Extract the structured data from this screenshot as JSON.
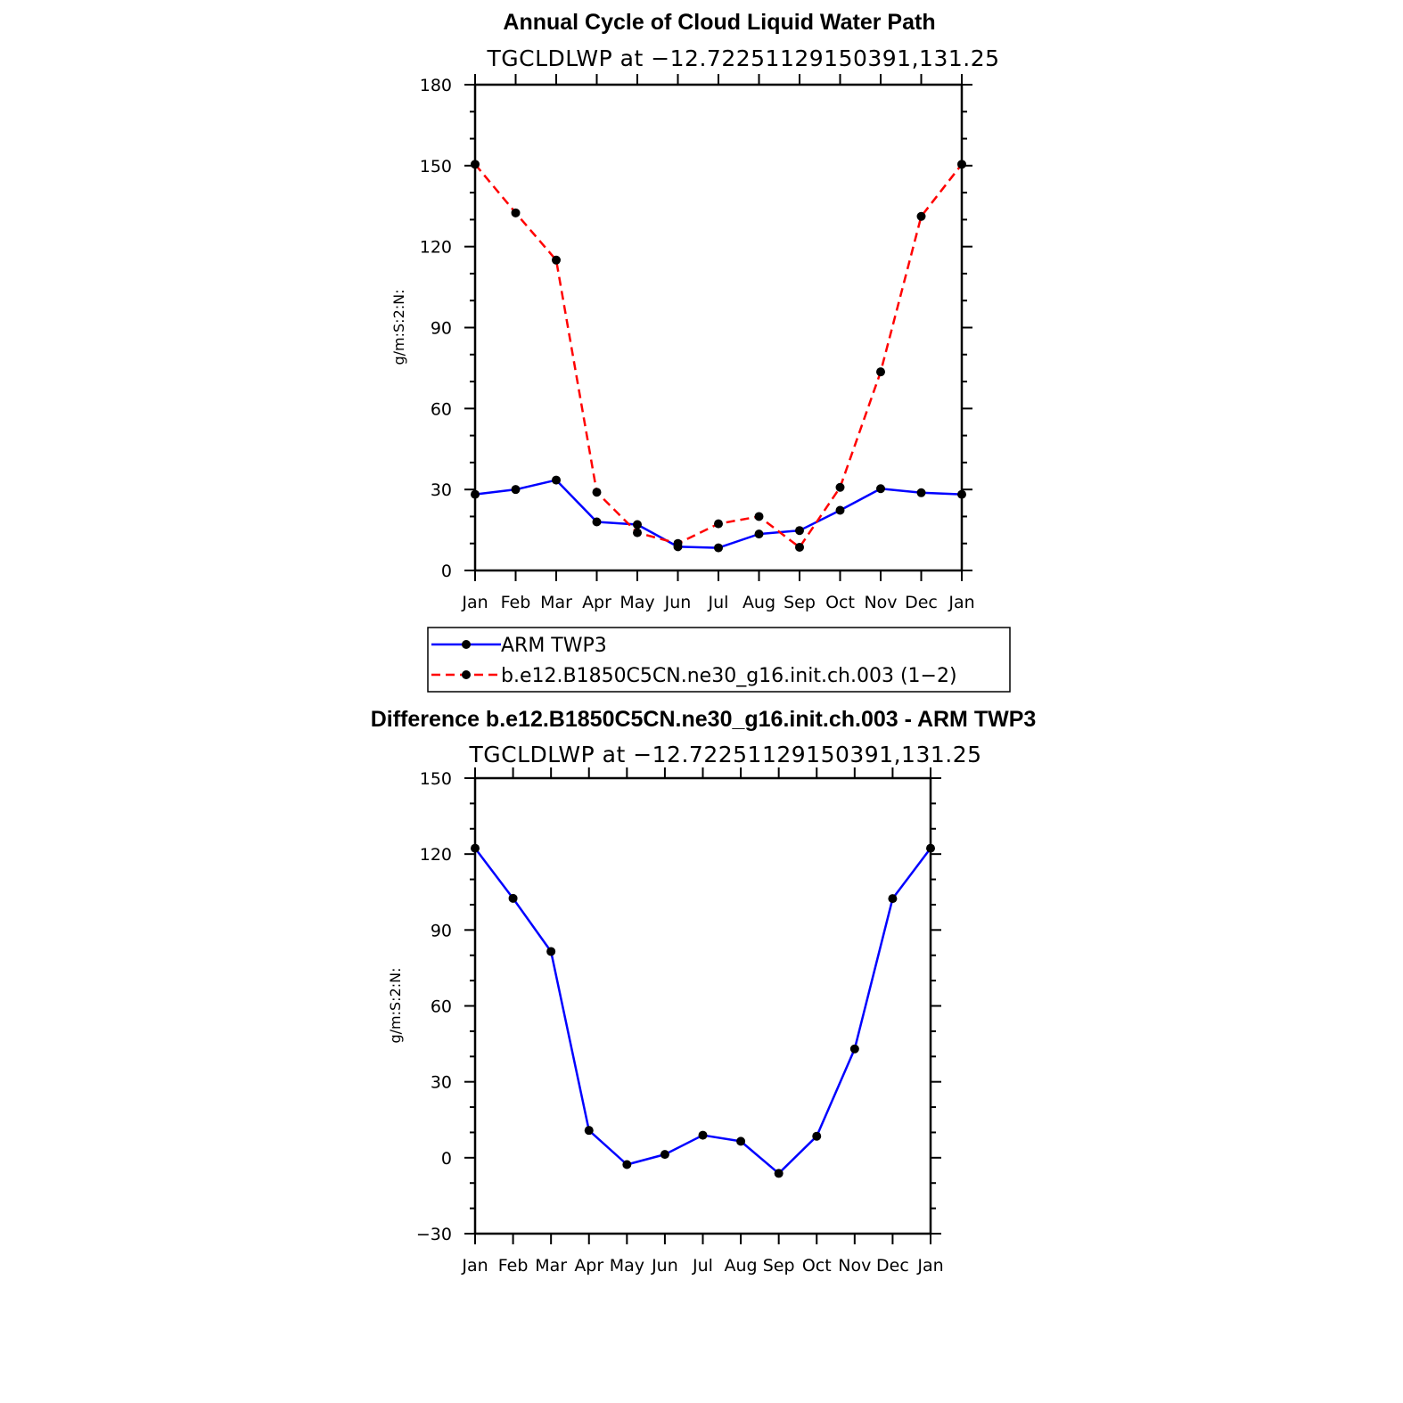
{
  "chart_data": [
    {
      "type": "line",
      "title": "Annual Cycle of Cloud Liquid Water Path",
      "subtitle": "TGCLDLWP at −12.72251129150391,131.25",
      "ylabel": "g/m:S:2:N:",
      "xlabel": "",
      "categories": [
        "Jan",
        "Feb",
        "Mar",
        "Apr",
        "May",
        "Jun",
        "Jul",
        "Aug",
        "Sep",
        "Oct",
        "Nov",
        "Dec",
        "Jan"
      ],
      "ylim": [
        0,
        180
      ],
      "yticks": [
        0,
        30,
        60,
        90,
        120,
        150,
        180
      ],
      "grid": false,
      "series": [
        {
          "name": "ARM TWP3",
          "color": "#0000ff",
          "dash": "solid",
          "values": [
            28.2,
            30.0,
            33.5,
            18.0,
            17.0,
            8.8,
            8.4,
            13.5,
            14.8,
            22.3,
            30.3,
            28.8,
            28.2
          ]
        },
        {
          "name": "b.e12.B1850C5CN.ne30_g16.init.ch.003 (1−2)",
          "color": "#ff0000",
          "dash": "dashed",
          "values": [
            150.5,
            132.5,
            115.0,
            29.0,
            14.0,
            10.0,
            17.3,
            20.0,
            8.6,
            30.8,
            73.6,
            131.2,
            150.5
          ]
        }
      ],
      "legend": "below"
    },
    {
      "type": "line",
      "title": "Difference b.e12.B1850C5CN.ne30_g16.init.ch.003 - ARM TWP3",
      "subtitle": "TGCLDLWP at −12.72251129150391,131.25",
      "ylabel": "g/m:S:2:N:",
      "xlabel": "",
      "categories": [
        "Jan",
        "Feb",
        "Mar",
        "Apr",
        "May",
        "Jun",
        "Jul",
        "Aug",
        "Sep",
        "Oct",
        "Nov",
        "Dec",
        "Jan"
      ],
      "ylim": [
        -30,
        150
      ],
      "yticks": [
        -30,
        0,
        30,
        60,
        90,
        120,
        150
      ],
      "grid": false,
      "series": [
        {
          "color": "#0000ff",
          "dash": "solid",
          "values": [
            122.3,
            102.5,
            81.5,
            10.8,
            -2.7,
            1.3,
            8.9,
            6.5,
            -6.2,
            8.5,
            43.0,
            102.4,
            122.3
          ]
        }
      ]
    }
  ]
}
